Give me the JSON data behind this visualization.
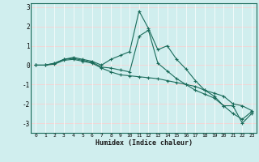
{
  "xlabel": "Humidex (Indice chaleur)",
  "bg_color": "#d0eeee",
  "line_color": "#1a6b5a",
  "grid_white_color": "#ffffff",
  "grid_pink_color": "#ffcccc",
  "x_ticks": [
    0,
    1,
    2,
    3,
    4,
    5,
    6,
    7,
    8,
    9,
    10,
    11,
    12,
    13,
    14,
    15,
    16,
    17,
    18,
    19,
    20,
    21,
    22,
    23
  ],
  "ylim": [
    -3.5,
    3.2
  ],
  "xlim": [
    -0.5,
    23.5
  ],
  "series": [
    [
      0.0,
      0.0,
      0.1,
      0.3,
      0.4,
      0.3,
      0.2,
      0.0,
      0.3,
      0.5,
      0.7,
      2.8,
      1.9,
      0.8,
      1.0,
      0.3,
      -0.2,
      -0.8,
      -1.3,
      -1.6,
      -2.1,
      -2.5,
      -2.8,
      -2.4
    ],
    [
      0.0,
      0.0,
      0.1,
      0.3,
      0.35,
      0.25,
      0.15,
      -0.1,
      -0.15,
      -0.25,
      -0.35,
      1.5,
      1.8,
      0.1,
      -0.3,
      -0.7,
      -1.0,
      -1.3,
      -1.5,
      -1.7,
      -2.1,
      -2.1,
      -3.0,
      -2.5
    ],
    [
      0.0,
      0.0,
      0.05,
      0.25,
      0.3,
      0.2,
      0.1,
      -0.15,
      -0.35,
      -0.5,
      -0.55,
      -0.6,
      -0.65,
      -0.7,
      -0.8,
      -0.9,
      -1.0,
      -1.1,
      -1.3,
      -1.45,
      -1.6,
      -2.0,
      -2.1,
      -2.35
    ]
  ]
}
